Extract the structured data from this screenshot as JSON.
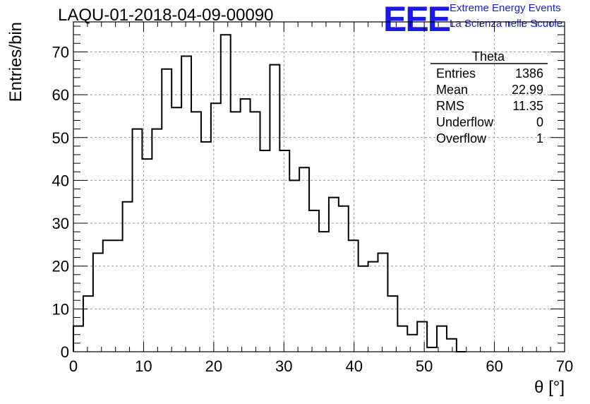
{
  "title": "LAQU-01-2018-04-09-00090",
  "logo": {
    "letters": "EEE",
    "line1": "Extreme Energy Events",
    "line2": "La Scienza nelle Scuole",
    "color": "#1a1ae6"
  },
  "stats": {
    "title": "Theta",
    "rows": [
      {
        "label": "Entries",
        "value": "1386"
      },
      {
        "label": "Mean",
        "value": "22.99"
      },
      {
        "label": "RMS",
        "value": "11.35"
      },
      {
        "label": "Underflow",
        "value": "0"
      },
      {
        "label": "Overflow",
        "value": "1"
      }
    ]
  },
  "chart_data": {
    "type": "histogram",
    "xlabel": "θ [°]",
    "ylabel": "Entries/bin",
    "xlim": [
      0,
      70
    ],
    "ylim": [
      0,
      77
    ],
    "grid": true,
    "xticks": [
      0,
      10,
      20,
      30,
      40,
      50,
      60,
      70
    ],
    "yticks": [
      0,
      10,
      20,
      30,
      40,
      50,
      60,
      70
    ],
    "bin_width": 1.4,
    "bin_start": 0,
    "values": [
      6,
      13,
      23,
      26,
      26,
      35,
      52,
      45,
      52,
      66,
      57,
      69,
      56,
      49,
      58,
      74,
      56,
      59,
      56,
      47,
      67,
      47,
      40,
      43,
      33,
      28,
      36,
      34,
      26,
      20,
      21,
      23,
      13,
      6,
      4,
      7,
      1,
      6,
      3,
      0
    ]
  }
}
